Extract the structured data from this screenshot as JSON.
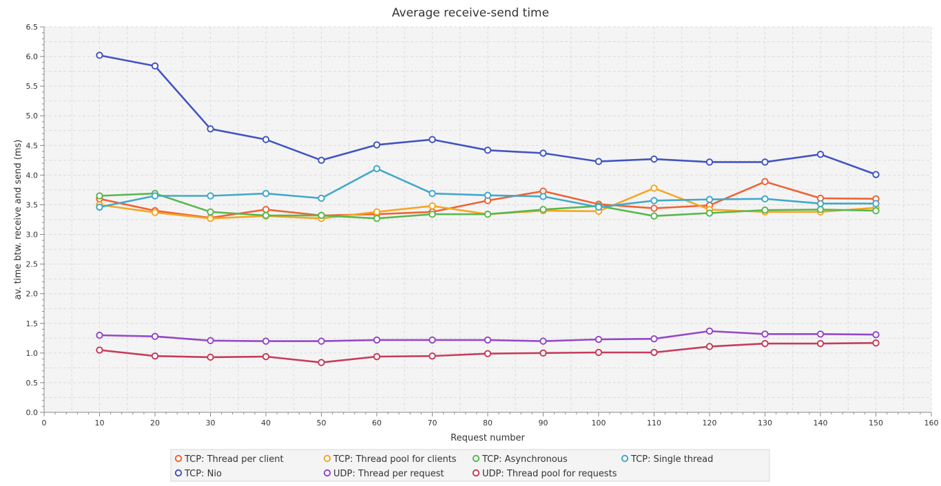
{
  "chart_data": {
    "type": "line",
    "title": "Average receive-send time",
    "xlabel": "Request number",
    "ylabel": "av. time btw. receive and send (ms)",
    "xlim": [
      0,
      160
    ],
    "ylim": [
      0,
      6.5
    ],
    "x_ticks": [
      0,
      10,
      20,
      30,
      40,
      50,
      60,
      70,
      80,
      90,
      100,
      110,
      120,
      130,
      140,
      150,
      160
    ],
    "y_ticks": [
      0.0,
      0.5,
      1.0,
      1.5,
      2.0,
      2.5,
      3.0,
      3.5,
      4.0,
      4.5,
      5.0,
      5.5,
      6.0,
      6.5
    ],
    "grid": true,
    "legend_position": "bottom",
    "x": [
      10,
      20,
      30,
      40,
      50,
      60,
      70,
      80,
      90,
      100,
      110,
      120,
      130,
      140,
      150
    ],
    "series": [
      {
        "name": "TCP: Thread per client",
        "color": "#ef6234",
        "values": [
          3.6,
          3.4,
          3.28,
          3.42,
          3.32,
          3.34,
          3.38,
          3.57,
          3.73,
          3.51,
          3.44,
          3.49,
          3.89,
          3.61,
          3.6
        ]
      },
      {
        "name": "TCP: Thread pool for clients",
        "color": "#f5a623",
        "values": [
          3.5,
          3.37,
          3.27,
          3.31,
          3.27,
          3.38,
          3.48,
          3.34,
          3.4,
          3.39,
          3.78,
          3.42,
          3.38,
          3.38,
          3.45
        ]
      },
      {
        "name": "TCP: Asynchronous",
        "color": "#58b84f",
        "values": [
          3.65,
          3.69,
          3.38,
          3.32,
          3.32,
          3.27,
          3.34,
          3.34,
          3.42,
          3.48,
          3.31,
          3.36,
          3.41,
          3.42,
          3.4
        ]
      },
      {
        "name": "TCP: Single thread",
        "color": "#43a8c8",
        "values": [
          3.46,
          3.65,
          3.65,
          3.69,
          3.61,
          4.11,
          3.69,
          3.66,
          3.64,
          3.46,
          3.57,
          3.59,
          3.6,
          3.52,
          3.52
        ]
      },
      {
        "name": "TCP: Nio",
        "color": "#4154c2",
        "values": [
          6.02,
          5.84,
          4.78,
          4.6,
          4.25,
          4.51,
          4.6,
          4.42,
          4.37,
          4.23,
          4.27,
          4.22,
          4.22,
          4.35,
          4.01
        ]
      },
      {
        "name": "UDP: Thread per request",
        "color": "#9448c8",
        "values": [
          1.3,
          1.28,
          1.21,
          1.2,
          1.2,
          1.22,
          1.22,
          1.22,
          1.2,
          1.23,
          1.24,
          1.37,
          1.32,
          1.32,
          1.31
        ]
      },
      {
        "name": "UDP: Thread pool for requests",
        "color": "#c63c5a",
        "values": [
          1.05,
          0.95,
          0.93,
          0.94,
          0.84,
          0.94,
          0.95,
          0.99,
          1.0,
          1.01,
          1.01,
          1.11,
          1.16,
          1.16,
          1.17
        ]
      }
    ]
  }
}
